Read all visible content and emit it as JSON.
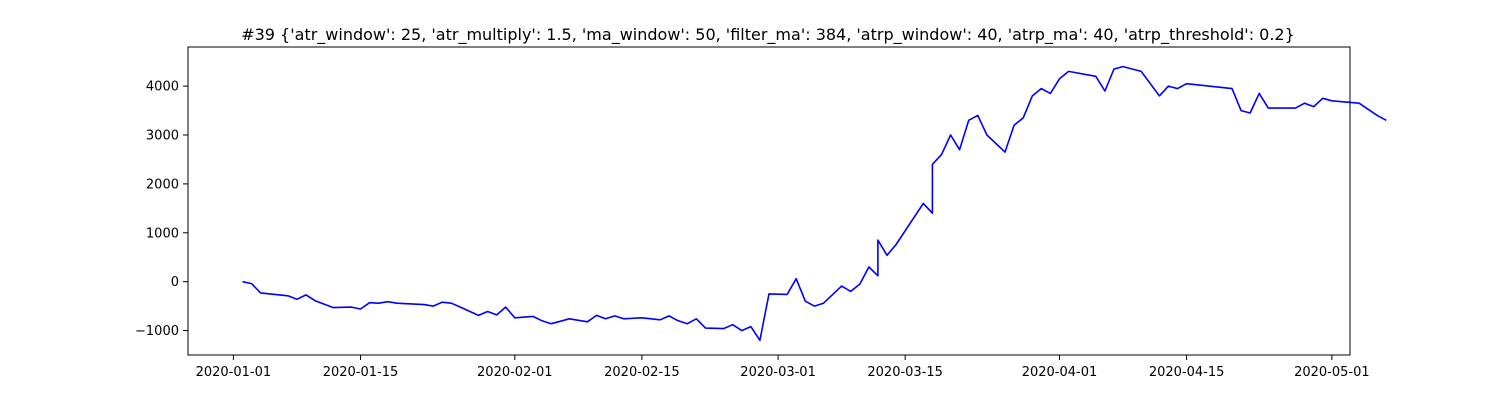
{
  "chart_data": {
    "type": "line",
    "title": "#39 {'atr_window': 25, 'atr_multiply': 1.5, 'ma_window': 50, 'filter_ma': 384, 'atrp_window': 40, 'atrp_ma': 40, 'atrp_threshold': 0.2}",
    "xlabel": "",
    "ylabel": "",
    "xlim": [
      "2019-12-27",
      "2020-05-03"
    ],
    "ylim": [
      -1500,
      4800
    ],
    "grid": false,
    "line_color": "#0000ff",
    "x_ticks": [
      {
        "date": "2020-01-01",
        "label": "2020-01-01"
      },
      {
        "date": "2020-01-15",
        "label": "2020-01-15"
      },
      {
        "date": "2020-02-01",
        "label": "2020-02-01"
      },
      {
        "date": "2020-02-15",
        "label": "2020-02-15"
      },
      {
        "date": "2020-03-01",
        "label": "2020-03-01"
      },
      {
        "date": "2020-03-15",
        "label": "2020-03-15"
      },
      {
        "date": "2020-04-01",
        "label": "2020-04-01"
      },
      {
        "date": "2020-04-15",
        "label": "2020-04-15"
      },
      {
        "date": "2020-05-01",
        "label": "2020-05-01"
      }
    ],
    "y_ticks": [
      {
        "value": -1000,
        "label": "−1000"
      },
      {
        "value": 0,
        "label": "0"
      },
      {
        "value": 1000,
        "label": "1000"
      },
      {
        "value": 2000,
        "label": "2000"
      },
      {
        "value": 3000,
        "label": "3000"
      },
      {
        "value": 4000,
        "label": "4000"
      }
    ],
    "series": [
      {
        "points": [
          [
            "2020-01-02",
            0
          ],
          [
            "2020-01-03",
            -40
          ],
          [
            "2020-01-04",
            -230
          ],
          [
            "2020-01-07",
            -290
          ],
          [
            "2020-01-08",
            -360
          ],
          [
            "2020-01-09",
            -270
          ],
          [
            "2020-01-10",
            -390
          ],
          [
            "2020-01-12",
            -530
          ],
          [
            "2020-01-14",
            -520
          ],
          [
            "2020-01-15",
            -560
          ],
          [
            "2020-01-16",
            -430
          ],
          [
            "2020-01-17",
            -440
          ],
          [
            "2020-01-18",
            -410
          ],
          [
            "2020-01-19",
            -440
          ],
          [
            "2020-01-22",
            -470
          ],
          [
            "2020-01-23",
            -500
          ],
          [
            "2020-01-24",
            -420
          ],
          [
            "2020-01-25",
            -440
          ],
          [
            "2020-01-26",
            -520
          ],
          [
            "2020-01-28",
            -690
          ],
          [
            "2020-01-29",
            -610
          ],
          [
            "2020-01-30",
            -680
          ],
          [
            "2020-01-31",
            -520
          ],
          [
            "2020-02-01",
            -740
          ],
          [
            "2020-02-03",
            -710
          ],
          [
            "2020-02-04",
            -800
          ],
          [
            "2020-02-05",
            -860
          ],
          [
            "2020-02-06",
            -810
          ],
          [
            "2020-02-07",
            -760
          ],
          [
            "2020-02-09",
            -820
          ],
          [
            "2020-02-10",
            -690
          ],
          [
            "2020-02-11",
            -760
          ],
          [
            "2020-02-12",
            -700
          ],
          [
            "2020-02-13",
            -760
          ],
          [
            "2020-02-15",
            -740
          ],
          [
            "2020-02-17",
            -780
          ],
          [
            "2020-02-18",
            -700
          ],
          [
            "2020-02-19",
            -800
          ],
          [
            "2020-02-20",
            -860
          ],
          [
            "2020-02-21",
            -760
          ],
          [
            "2020-02-22",
            -950
          ],
          [
            "2020-02-24",
            -960
          ],
          [
            "2020-02-25",
            -880
          ],
          [
            "2020-02-26",
            -1000
          ],
          [
            "2020-02-27",
            -920
          ],
          [
            "2020-02-28",
            -1200
          ],
          [
            "2020-02-29",
            -250
          ],
          [
            "2020-03-02",
            -260
          ],
          [
            "2020-03-03",
            60
          ],
          [
            "2020-03-04",
            -400
          ],
          [
            "2020-03-05",
            -500
          ],
          [
            "2020-03-06",
            -440
          ],
          [
            "2020-03-08",
            -90
          ],
          [
            "2020-03-09",
            -200
          ],
          [
            "2020-03-10",
            -50
          ],
          [
            "2020-03-11",
            300
          ],
          [
            "2020-03-12",
            120
          ],
          [
            "2020-03-12",
            850
          ],
          [
            "2020-03-13",
            540
          ],
          [
            "2020-03-14",
            760
          ],
          [
            "2020-03-17",
            1600
          ],
          [
            "2020-03-18",
            1400
          ],
          [
            "2020-03-18",
            2400
          ],
          [
            "2020-03-19",
            2600
          ],
          [
            "2020-03-20",
            3000
          ],
          [
            "2020-03-21",
            2700
          ],
          [
            "2020-03-22",
            3300
          ],
          [
            "2020-03-23",
            3400
          ],
          [
            "2020-03-24",
            3000
          ],
          [
            "2020-03-26",
            2650
          ],
          [
            "2020-03-27",
            3200
          ],
          [
            "2020-03-28",
            3350
          ],
          [
            "2020-03-29",
            3800
          ],
          [
            "2020-03-30",
            3950
          ],
          [
            "2020-03-31",
            3850
          ],
          [
            "2020-04-01",
            4150
          ],
          [
            "2020-04-02",
            4300
          ],
          [
            "2020-04-05",
            4200
          ],
          [
            "2020-04-06",
            3900
          ],
          [
            "2020-04-07",
            4350
          ],
          [
            "2020-04-08",
            4400
          ],
          [
            "2020-04-10",
            4300
          ],
          [
            "2020-04-12",
            3800
          ],
          [
            "2020-04-13",
            4000
          ],
          [
            "2020-04-14",
            3950
          ],
          [
            "2020-04-15",
            4050
          ],
          [
            "2020-04-20",
            3950
          ],
          [
            "2020-04-21",
            3500
          ],
          [
            "2020-04-22",
            3450
          ],
          [
            "2020-04-23",
            3850
          ],
          [
            "2020-04-24",
            3550
          ],
          [
            "2020-04-27",
            3550
          ],
          [
            "2020-04-28",
            3650
          ],
          [
            "2020-04-29",
            3580
          ],
          [
            "2020-04-30",
            3750
          ],
          [
            "2020-05-01",
            3700
          ],
          [
            "2020-05-04",
            3650
          ],
          [
            "2020-05-06",
            3400
          ],
          [
            "2020-05-07",
            3300
          ]
        ]
      }
    ]
  }
}
